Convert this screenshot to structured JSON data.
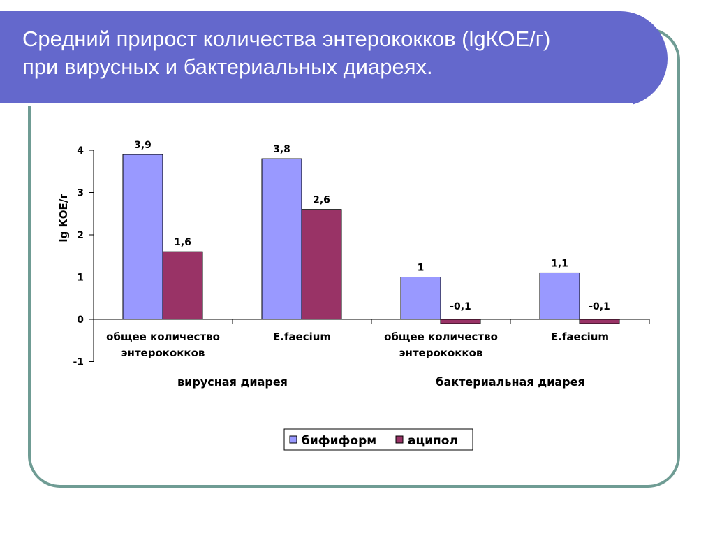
{
  "slide": {
    "title_line1": "Средний прирост количества энтерококков (lgКОЕ/г)",
    "title_line2": "при вирусных и бактериальных диареях."
  },
  "colors": {
    "banner": "#6468cc",
    "frame": "#6f9c94",
    "bifiform": "#9999ff",
    "acipol": "#993366"
  },
  "chart_data": {
    "type": "bar",
    "ylabel": "lg КОЕ/г",
    "ylim": [
      -1,
      4
    ],
    "yticks": [
      "-1",
      "0",
      "1",
      "2",
      "3",
      "4"
    ],
    "categories": [
      "общее количество энтерококков",
      "E.faecium",
      "общее количество энтерококков",
      "E.faecium"
    ],
    "category_lines": [
      [
        "общее количество",
        "энтерококков"
      ],
      [
        "E.faecium"
      ],
      [
        "общее количество",
        "энтерококков"
      ],
      [
        "E.faecium"
      ]
    ],
    "groups": [
      {
        "label": "вирусная диарея",
        "categories": [
          0,
          1
        ]
      },
      {
        "label": "бактериальная диарея",
        "categories": [
          2,
          3
        ]
      }
    ],
    "series": [
      {
        "name": "бифиформ",
        "values": [
          3.9,
          3.8,
          1,
          1.1
        ],
        "labels": [
          "3,9",
          "3,8",
          "1",
          "1,1"
        ]
      },
      {
        "name": "аципол",
        "values": [
          1.6,
          2.6,
          -0.1,
          -0.1
        ],
        "labels": [
          "1,6",
          "2,6",
          "-0,1",
          "-0,1"
        ]
      }
    ],
    "legend_position": "bottom",
    "grid": false
  }
}
